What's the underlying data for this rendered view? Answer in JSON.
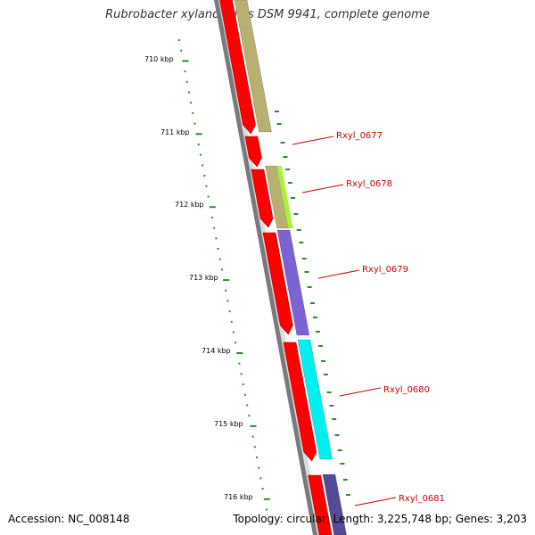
{
  "title": "Rubrobacter xylanophilus DSM 9941, complete genome",
  "accession": "Accession: NC_008148",
  "summary": "Topology: circular; Length: 3,225,748 bp; Genes: 3,203",
  "ticks": [
    {
      "label": "710 kbp"
    },
    {
      "label": "711 kbp"
    },
    {
      "label": "712 kbp"
    },
    {
      "label": "713 kbp"
    },
    {
      "label": "714 kbp"
    },
    {
      "label": "715 kbp"
    },
    {
      "label": "716 kbp"
    }
  ],
  "genes": [
    {
      "label": "Rxyl_0677",
      "color": "#b8b070"
    },
    {
      "label": "Rxyl_0678",
      "color": "#a6f52f"
    },
    {
      "label": "Rxyl_0679",
      "color": "#7b63d6"
    },
    {
      "label": "Rxyl_0680",
      "color": "#00f0f0"
    },
    {
      "label": "Rxyl_0681",
      "color": "#544a96"
    }
  ],
  "colors": {
    "cds": "#ff0000",
    "backbone": "#808080",
    "gc_ticks": "#2e8b2e",
    "label": "#cc0000"
  }
}
